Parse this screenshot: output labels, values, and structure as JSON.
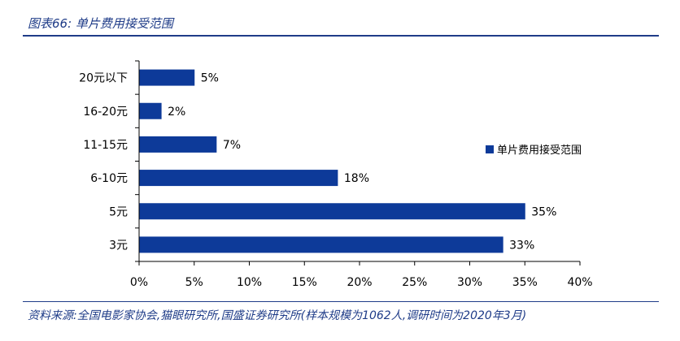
{
  "figure": {
    "title": "图表66:  单片费用接受范围",
    "source": "资料来源:全国电影家协会,猫眼研究所,国盛证券研究所(样本规模为1062人,调研时间为2020年3月)"
  },
  "colors": {
    "bar": "#0d3a99",
    "rule": "#1f3c88"
  },
  "chart_data": {
    "type": "bar",
    "orientation": "horizontal",
    "categories": [
      "20元以下",
      "16-20元",
      "11-15元",
      "6-10元",
      "5元",
      "3元"
    ],
    "series": [
      {
        "name": "单片费用接受范围",
        "values": [
          5,
          2,
          7,
          18,
          35,
          33
        ]
      }
    ],
    "data_labels": [
      "5%",
      "2%",
      "7%",
      "18%",
      "35%",
      "33%"
    ],
    "xlim": [
      0,
      40
    ],
    "xticks": [
      0,
      5,
      10,
      15,
      20,
      25,
      30,
      35,
      40
    ],
    "xtick_labels": [
      "0%",
      "5%",
      "10%",
      "15%",
      "20%",
      "25%",
      "30%",
      "35%",
      "40%"
    ],
    "grid": false,
    "legend": "right"
  }
}
